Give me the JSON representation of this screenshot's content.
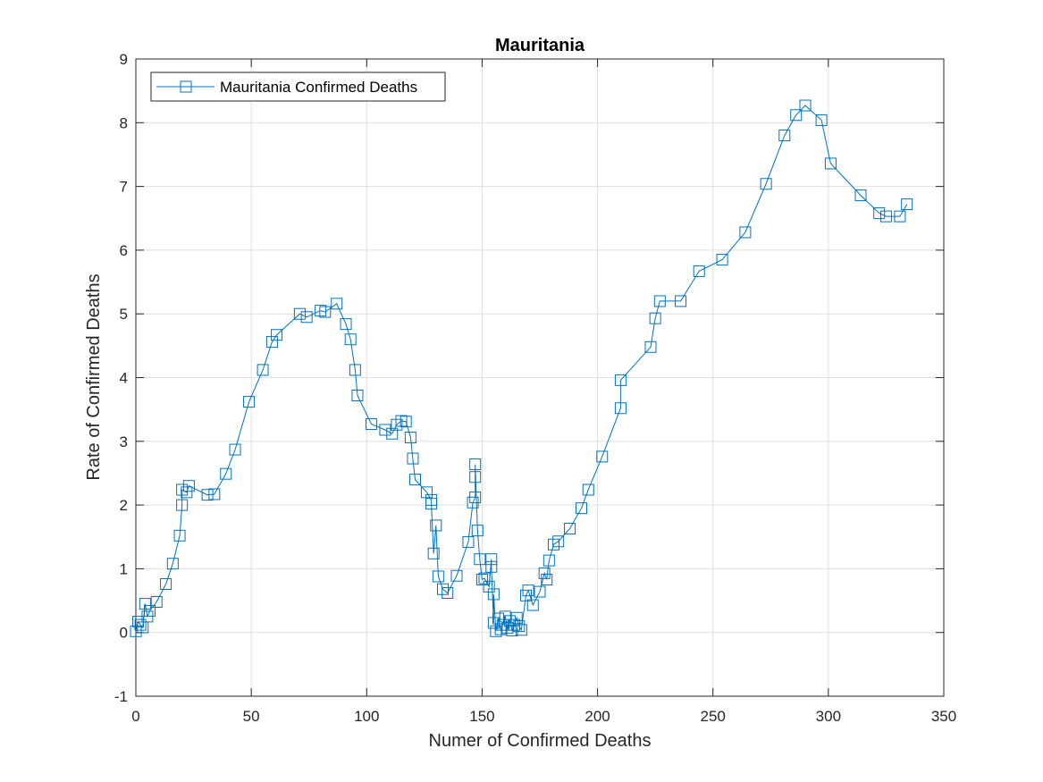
{
  "chart_data": {
    "type": "line",
    "title": "Mauritania",
    "xlabel": "Numer of Confirmed Deaths",
    "ylabel": "Rate of Confirmed Deaths",
    "xlim": [
      0,
      350
    ],
    "ylim": [
      -1,
      9
    ],
    "xticks": [
      "0",
      "50",
      "100",
      "150",
      "200",
      "250",
      "300",
      "350"
    ],
    "yticks": [
      "-1",
      "0",
      "1",
      "2",
      "3",
      "4",
      "5",
      "6",
      "7",
      "8",
      "9"
    ],
    "grid": true,
    "legend_position": "top-left",
    "marker": "square",
    "color": "#0072BD",
    "series": [
      {
        "name": "Mauritania Confirmed Deaths",
        "x": [
          0,
          1,
          2,
          3,
          4,
          5,
          6,
          9,
          13,
          16,
          19,
          20,
          20,
          22,
          23,
          31,
          34,
          39,
          43,
          49,
          55,
          59,
          61,
          71,
          74,
          80,
          82,
          87,
          91,
          93,
          95,
          96,
          102,
          108,
          111,
          113,
          115,
          117,
          119,
          120,
          121,
          126,
          128,
          128,
          129,
          130,
          131,
          133,
          135,
          139,
          144,
          146,
          147,
          147,
          147,
          148,
          149,
          150,
          151,
          153,
          154,
          154,
          155,
          155,
          156,
          157,
          158,
          159,
          160,
          161,
          162,
          163,
          164,
          165,
          166,
          167,
          169,
          170,
          172,
          175,
          177,
          178,
          179,
          181,
          183,
          188,
          193,
          196,
          202,
          210,
          210,
          223,
          225,
          227,
          236,
          244,
          254,
          264,
          273,
          281,
          286,
          290,
          297,
          301,
          314,
          322,
          325,
          331,
          334
        ],
        "y": [
          0.02,
          0.17,
          0.12,
          0.08,
          0.45,
          0.25,
          0.34,
          0.48,
          0.76,
          1.08,
          1.52,
          2.0,
          2.24,
          2.2,
          2.3,
          2.16,
          2.17,
          2.49,
          2.87,
          3.62,
          4.12,
          4.56,
          4.67,
          5.0,
          4.95,
          5.05,
          5.03,
          5.16,
          4.84,
          4.6,
          4.12,
          3.72,
          3.27,
          3.18,
          3.12,
          3.26,
          3.32,
          3.31,
          3.06,
          2.73,
          2.4,
          2.2,
          2.08,
          2.02,
          1.24,
          1.68,
          0.88,
          0.68,
          0.62,
          0.89,
          1.42,
          2.04,
          2.12,
          2.44,
          2.64,
          1.6,
          1.15,
          0.83,
          0.85,
          0.72,
          1.15,
          1.03,
          0.15,
          0.6,
          0.02,
          0.22,
          0.05,
          0.12,
          0.25,
          0.07,
          0.18,
          0.03,
          0.12,
          0.23,
          0.1,
          0.04,
          0.58,
          0.66,
          0.43,
          0.64,
          0.93,
          0.83,
          1.13,
          1.38,
          1.43,
          1.63,
          1.95,
          2.24,
          2.76,
          3.52,
          3.96,
          4.48,
          4.93,
          5.2,
          5.2,
          5.67,
          5.85,
          6.28,
          7.04,
          7.8,
          8.12,
          8.27,
          8.04,
          7.36,
          6.86,
          6.58,
          6.53,
          6.53,
          6.72
        ]
      }
    ]
  }
}
